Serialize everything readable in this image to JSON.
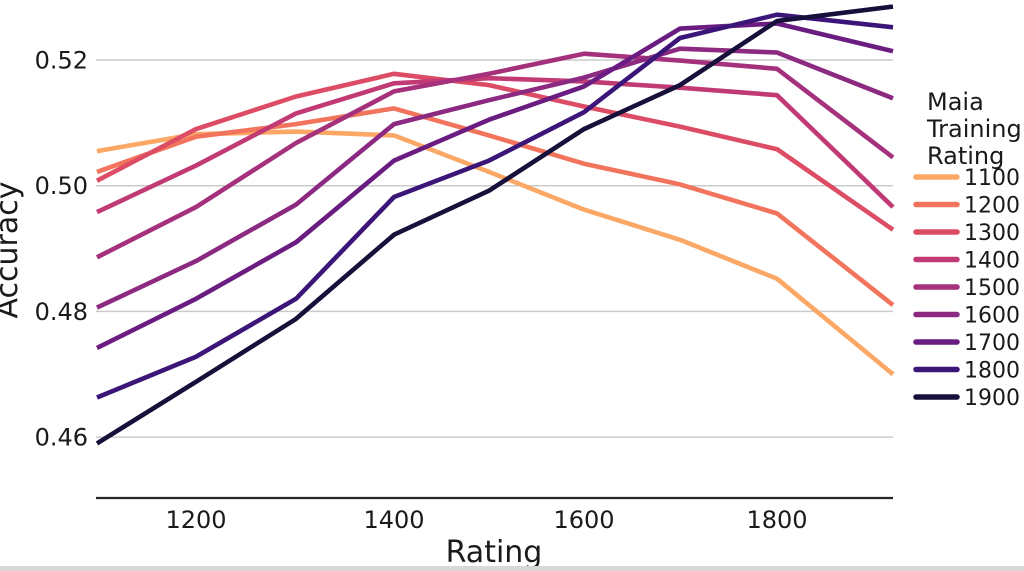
{
  "chart_data": {
    "type": "line",
    "title": "",
    "xlabel": "Rating",
    "ylabel": "Accuracy",
    "legend_title_lines": [
      "Maia",
      "Training",
      "Rating"
    ],
    "x": [
      1100,
      1200,
      1300,
      1400,
      1500,
      1600,
      1700,
      1800,
      1900
    ],
    "x_ticks": [
      {
        "value": 1200,
        "label": "1200"
      },
      {
        "value": 1400,
        "label": "1400"
      },
      {
        "value": 1600,
        "label": "1600"
      },
      {
        "value": 1800,
        "label": "1800"
      }
    ],
    "y_ticks": [
      {
        "value": 0.52,
        "label": "0.52"
      },
      {
        "value": 0.5,
        "label": "0.50"
      },
      {
        "value": 0.48,
        "label": "0.48"
      },
      {
        "value": 0.46,
        "label": "0.46"
      }
    ],
    "ylim": [
      0.452,
      0.53
    ],
    "xlim": [
      1100,
      1900
    ],
    "grid": "horizontal",
    "legend_position": "right",
    "series": [
      {
        "name": "1100",
        "color": "#fba765",
        "values": [
          0.5055,
          0.5082,
          0.5086,
          0.508,
          0.5022,
          0.4962,
          0.4914,
          0.4852,
          0.47
        ]
      },
      {
        "name": "1200",
        "color": "#f3745c",
        "values": [
          0.5022,
          0.5078,
          0.5098,
          0.5123,
          0.508,
          0.5035,
          0.5002,
          0.4956,
          0.481
        ]
      },
      {
        "name": "1300",
        "color": "#dd4c65",
        "values": [
          0.5008,
          0.509,
          0.5142,
          0.5178,
          0.516,
          0.5126,
          0.5094,
          0.5058,
          0.493
        ]
      },
      {
        "name": "1400",
        "color": "#c13a74",
        "values": [
          0.4958,
          0.5032,
          0.5115,
          0.5163,
          0.5171,
          0.5166,
          0.5156,
          0.5144,
          0.4966
        ]
      },
      {
        "name": "1500",
        "color": "#a5317d",
        "values": [
          0.4886,
          0.4966,
          0.5068,
          0.515,
          0.5178,
          0.521,
          0.5199,
          0.5186,
          0.5045
        ]
      },
      {
        "name": "1600",
        "color": "#8c2981",
        "values": [
          0.4806,
          0.488,
          0.497,
          0.5098,
          0.5136,
          0.5172,
          0.5218,
          0.5212,
          0.5139
        ]
      },
      {
        "name": "1700",
        "color": "#6a1c81",
        "values": [
          0.4742,
          0.482,
          0.491,
          0.504,
          0.5105,
          0.5158,
          0.525,
          0.5258,
          0.5214
        ]
      },
      {
        "name": "1800",
        "color": "#3c1578",
        "values": [
          0.4663,
          0.4728,
          0.482,
          0.4982,
          0.504,
          0.5117,
          0.5235,
          0.5272,
          0.5252
        ]
      },
      {
        "name": "1900",
        "color": "#16103a",
        "values": [
          0.459,
          0.4688,
          0.4788,
          0.4922,
          0.4992,
          0.509,
          0.516,
          0.5262,
          0.5285
        ]
      }
    ]
  },
  "page": {
    "bottom_strip_color": "#d8d8d8",
    "gridline_color": "#cbcbcb",
    "axis_line_color": "#262626"
  }
}
